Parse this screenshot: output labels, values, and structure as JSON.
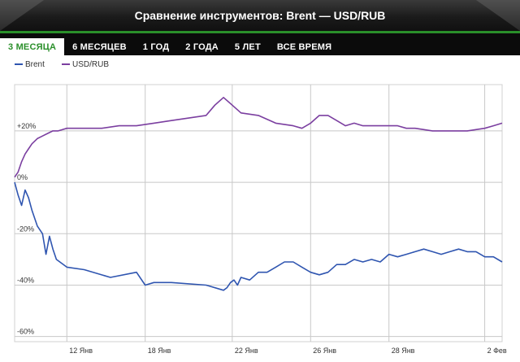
{
  "header": {
    "title": "Сравнение инструментов: Brent — USD/RUB"
  },
  "tabs": [
    {
      "label": "3 МЕСЯЦА",
      "active": true
    },
    {
      "label": "6 МЕСЯЦЕВ",
      "active": false
    },
    {
      "label": "1 ГОД",
      "active": false
    },
    {
      "label": "2 ГОДА",
      "active": false
    },
    {
      "label": "5 ЛЕТ",
      "active": false
    },
    {
      "label": "ВСЕ ВРЕМЯ",
      "active": false
    }
  ],
  "colors": {
    "accent": "#2a8f2a",
    "brent": "#2f55b0",
    "usdrub": "#7b3fa0",
    "grid": "#c8c8c8"
  },
  "chart_data": {
    "type": "line",
    "legend": [
      "Brent",
      "USD/RUB"
    ],
    "legend_position": "top-left",
    "grid": true,
    "ylim": [
      -62,
      38
    ],
    "y_ticks": [
      {
        "value": 20,
        "label": "+20%"
      },
      {
        "value": 0,
        "label": "0%"
      },
      {
        "value": -20,
        "label": "-20%"
      },
      {
        "value": -40,
        "label": "-40%"
      },
      {
        "value": -60,
        "label": "-60%"
      }
    ],
    "xlim": [
      0,
      28
    ],
    "x_ticks": [
      {
        "value": 3,
        "label": "12 Янв"
      },
      {
        "value": 7.5,
        "label": "18 Янв"
      },
      {
        "value": 12.5,
        "label": "22 Янв"
      },
      {
        "value": 17,
        "label": "26 Янв"
      },
      {
        "value": 21.5,
        "label": "28 Янв"
      },
      {
        "value": 27,
        "label": "2 Фев"
      }
    ],
    "series": [
      {
        "name": "Brent",
        "color": "#2f55b0",
        "x": [
          0,
          0.2,
          0.4,
          0.6,
          0.8,
          1.0,
          1.3,
          1.6,
          1.8,
          2.0,
          2.2,
          2.4,
          3.0,
          4.0,
          5.5,
          7.0,
          7.5,
          8.0,
          9.0,
          11.0,
          12.0,
          12.2,
          12.4,
          12.6,
          12.8,
          13.0,
          13.5,
          14.0,
          14.5,
          15.0,
          15.5,
          16.0,
          16.5,
          17.0,
          17.5,
          18.0,
          18.5,
          19.0,
          19.5,
          20.0,
          20.5,
          21.0,
          21.5,
          22.0,
          22.5,
          23.0,
          23.5,
          24.0,
          24.5,
          25.0,
          25.5,
          26.0,
          26.5,
          27.0,
          27.5,
          28.0
        ],
        "values": [
          0,
          -5,
          -9,
          -3,
          -6,
          -11,
          -17,
          -20,
          -28,
          -21,
          -26,
          -30,
          -33,
          -34,
          -37,
          -35,
          -40,
          -39,
          -39,
          -40,
          -42,
          -41,
          -39,
          -38,
          -40,
          -37,
          -38,
          -35,
          -35,
          -33,
          -31,
          -31,
          -33,
          -35,
          -36,
          -35,
          -32,
          -32,
          -30,
          -31,
          -30,
          -31,
          -28,
          -29,
          -28,
          -27,
          -26,
          -27,
          -28,
          -27,
          -26,
          -27,
          -27,
          -29,
          -29,
          -31
        ]
      },
      {
        "name": "USD/RUB",
        "color": "#7b3fa0",
        "x": [
          0,
          0.2,
          0.4,
          0.6,
          0.8,
          1.0,
          1.3,
          1.6,
          1.9,
          2.2,
          2.5,
          3.0,
          4.0,
          5.0,
          6.0,
          7.0,
          8.0,
          9.0,
          10.0,
          11.0,
          11.5,
          12.0,
          12.5,
          13.0,
          14.0,
          15.0,
          16.0,
          16.5,
          17.0,
          17.5,
          18.0,
          18.5,
          19.0,
          19.5,
          20.0,
          21.0,
          22.0,
          22.5,
          23.0,
          24.0,
          25.0,
          26.0,
          27.0,
          27.5,
          28.0
        ],
        "values": [
          2,
          4,
          8,
          11,
          13,
          15,
          17,
          18,
          19,
          20,
          20,
          21,
          21,
          21,
          22,
          22,
          23,
          24,
          25,
          26,
          30,
          33,
          30,
          27,
          26,
          23,
          22,
          21,
          23,
          26,
          26,
          24,
          22,
          23,
          22,
          22,
          22,
          21,
          21,
          20,
          20,
          20,
          21,
          22,
          23
        ]
      }
    ]
  }
}
